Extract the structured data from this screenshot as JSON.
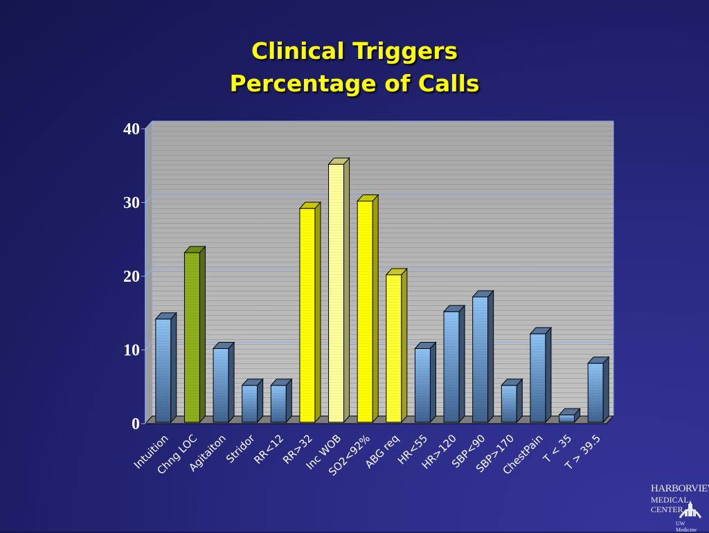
{
  "slide": {
    "title_line1": "Clinical Triggers",
    "title_line2": "Percentage of Calls"
  },
  "chart_data": {
    "type": "bar",
    "title": "Clinical Triggers Percentage of Calls",
    "xlabel": "",
    "ylabel": "",
    "ylim": [
      0,
      40
    ],
    "yticks": [
      0,
      10,
      20,
      30,
      40
    ],
    "grid": true,
    "categories": [
      "Intuition",
      "Chng LOC",
      "Agitaiton",
      "Stridor",
      "RR<12",
      "RR>32",
      "Inc WOB",
      "SO2<92%",
      "ABG req",
      "HR<55",
      "HR>120",
      "SBP<90",
      "SBP>170",
      "ChestPain",
      "T < 35",
      "T > 39.5"
    ],
    "values": [
      14,
      23,
      10,
      5,
      5,
      29,
      35,
      30,
      20,
      10,
      15,
      17,
      5,
      12,
      1,
      8
    ],
    "bar_colors": [
      "#7fb3e8",
      "#8fae1b",
      "#7fb3e8",
      "#7fb3e8",
      "#7fb3e8",
      "#ffff00",
      "#ffff99",
      "#ffff00",
      "#ffff33",
      "#7fb3e8",
      "#7fb3e8",
      "#7fb3e8",
      "#7fb3e8",
      "#7fb3e8",
      "#7fb3e8",
      "#7fb3e8"
    ]
  },
  "logo": {
    "line1": "HARBORVIEW",
    "line2": "MEDICAL",
    "line3": "CENTER",
    "line4": "UW Medicine"
  }
}
